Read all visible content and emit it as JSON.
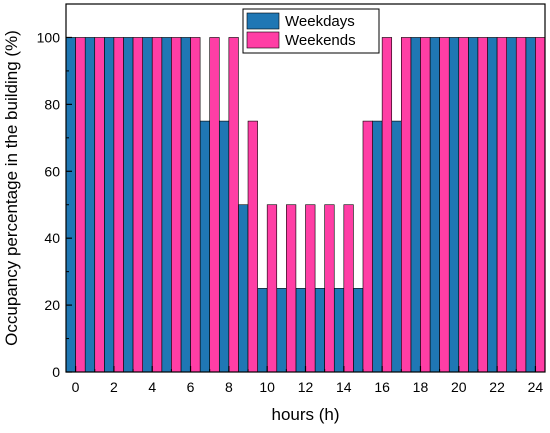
{
  "chart_data": {
    "type": "bar",
    "title": "",
    "xlabel": "hours (h)",
    "ylabel": "Occupancy percentage in the building (%)",
    "x_ticks": [
      "0",
      "2",
      "4",
      "6",
      "8",
      "10",
      "12",
      "14",
      "16",
      "18",
      "20",
      "22",
      "24"
    ],
    "y_ticks": [
      "0",
      "20",
      "40",
      "60",
      "80",
      "100"
    ],
    "xlim": [
      -0.5,
      24.5
    ],
    "ylim": [
      0,
      110
    ],
    "grid": false,
    "legend_position": "top-center",
    "categories": [
      0,
      1,
      2,
      3,
      4,
      5,
      6,
      7,
      8,
      9,
      10,
      11,
      12,
      13,
      14,
      15,
      16,
      17,
      18,
      19,
      20,
      21,
      22,
      23,
      24
    ],
    "series": [
      {
        "name": "Weekdays",
        "color": "#1f77b4",
        "values": [
          100,
          100,
          100,
          100,
          100,
          100,
          100,
          75,
          75,
          50,
          25,
          25,
          25,
          25,
          25,
          25,
          75,
          75,
          100,
          100,
          100,
          100,
          100,
          100,
          100
        ]
      },
      {
        "name": "Weekends",
        "color": "#ff3ea5",
        "values": [
          100,
          100,
          100,
          100,
          100,
          100,
          100,
          100,
          100,
          75,
          50,
          50,
          50,
          50,
          50,
          75,
          100,
          100,
          100,
          100,
          100,
          100,
          100,
          100,
          100
        ]
      }
    ]
  }
}
